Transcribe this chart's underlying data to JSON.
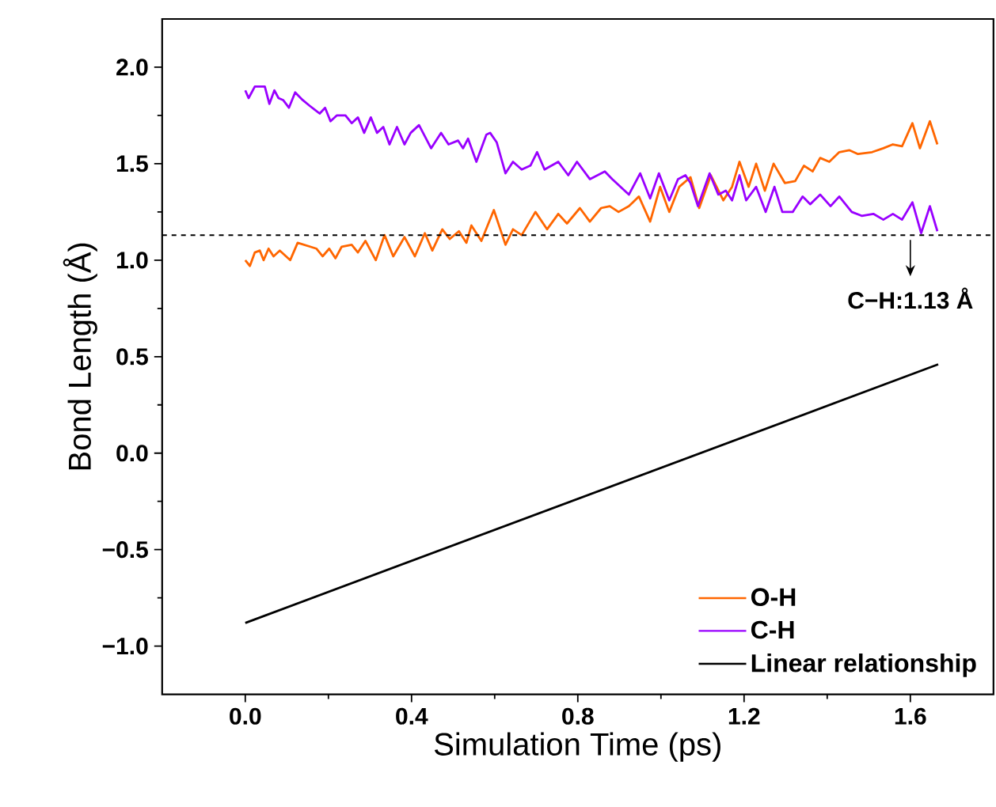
{
  "chart_data": {
    "type": "line",
    "xlabel": "Simulation Time (ps)",
    "ylabel": "Bond Length (Å)",
    "xlim": [
      -0.2,
      1.8
    ],
    "ylim": [
      -1.25,
      2.25
    ],
    "xticks": [
      {
        "value": 0,
        "label": "0.0"
      },
      0.4,
      0.8,
      1.2,
      1.6
    ],
    "yticks": [
      {
        "value": -1,
        "label": "−1.0"
      },
      {
        "value": -0.5,
        "label": "−0.5"
      },
      {
        "value": 0,
        "label": "0.0"
      },
      0.5,
      {
        "value": 1,
        "label": "1.0"
      },
      1.5,
      {
        "value": 2,
        "label": "2.0"
      }
    ],
    "legend": "bottom right",
    "grid": false,
    "marker": "none",
    "line_style": "solid",
    "ref_lines": [
      {
        "axis": "y",
        "value": 1.13,
        "line_style": "dashed",
        "color": "#000000"
      }
    ],
    "annotations": [
      {
        "text": "C−H:1.13 Å",
        "x": 1.6,
        "y": 1.13
      }
    ],
    "series": [
      {
        "name": "O-H",
        "color": "#ff6600",
        "x": [
          0,
          0.011,
          0.023,
          0.035,
          0.044,
          0.056,
          0.068,
          0.083,
          0.108,
          0.126,
          0.156,
          0.171,
          0.186,
          0.202,
          0.217,
          0.232,
          0.256,
          0.271,
          0.289,
          0.314,
          0.335,
          0.356,
          0.383,
          0.408,
          0.432,
          0.45,
          0.474,
          0.492,
          0.514,
          0.532,
          0.544,
          0.568,
          0.598,
          0.626,
          0.644,
          0.665,
          0.698,
          0.726,
          0.753,
          0.774,
          0.805,
          0.829,
          0.856,
          0.877,
          0.898,
          0.923,
          0.947,
          0.974,
          0.998,
          1.02,
          1.044,
          1.071,
          1.092,
          1.12,
          1.15,
          1.171,
          1.189,
          1.211,
          1.229,
          1.25,
          1.271,
          1.298,
          1.323,
          1.344,
          1.365,
          1.383,
          1.405,
          1.429,
          1.453,
          1.474,
          1.508,
          1.535,
          1.558,
          1.58,
          1.605,
          1.623,
          1.647,
          1.665
        ],
        "values": [
          1.0,
          0.97,
          1.04,
          1.05,
          1.0,
          1.06,
          1.02,
          1.05,
          1.0,
          1.09,
          1.07,
          1.06,
          1.02,
          1.06,
          1.01,
          1.07,
          1.08,
          1.04,
          1.1,
          1.0,
          1.13,
          1.02,
          1.12,
          1.02,
          1.14,
          1.05,
          1.16,
          1.11,
          1.15,
          1.09,
          1.18,
          1.1,
          1.26,
          1.08,
          1.16,
          1.13,
          1.25,
          1.16,
          1.24,
          1.19,
          1.27,
          1.2,
          1.27,
          1.28,
          1.25,
          1.28,
          1.33,
          1.2,
          1.38,
          1.25,
          1.38,
          1.43,
          1.27,
          1.44,
          1.31,
          1.38,
          1.51,
          1.38,
          1.5,
          1.36,
          1.5,
          1.4,
          1.41,
          1.49,
          1.46,
          1.53,
          1.51,
          1.56,
          1.57,
          1.55,
          1.56,
          1.58,
          1.6,
          1.59,
          1.71,
          1.58,
          1.72,
          1.6
        ]
      },
      {
        "name": "C-H",
        "color": "#9900ff",
        "x": [
          0,
          0.008,
          0.023,
          0.038,
          0.047,
          0.058,
          0.07,
          0.08,
          0.091,
          0.105,
          0.12,
          0.138,
          0.155,
          0.167,
          0.179,
          0.192,
          0.205,
          0.22,
          0.241,
          0.256,
          0.271,
          0.286,
          0.302,
          0.317,
          0.332,
          0.347,
          0.365,
          0.383,
          0.398,
          0.418,
          0.447,
          0.471,
          0.489,
          0.512,
          0.524,
          0.536,
          0.556,
          0.58,
          0.589,
          0.605,
          0.626,
          0.644,
          0.665,
          0.686,
          0.702,
          0.72,
          0.753,
          0.777,
          0.798,
          0.829,
          0.865,
          0.883,
          0.923,
          0.95,
          0.974,
          0.995,
          1.02,
          1.041,
          1.059,
          1.071,
          1.089,
          1.117,
          1.138,
          1.156,
          1.171,
          1.189,
          1.205,
          1.229,
          1.252,
          1.273,
          1.292,
          1.317,
          1.341,
          1.359,
          1.383,
          1.408,
          1.429,
          1.459,
          1.483,
          1.511,
          1.535,
          1.558,
          1.58,
          1.605,
          1.626,
          1.647,
          1.665
        ],
        "values": [
          1.88,
          1.84,
          1.9,
          1.9,
          1.9,
          1.81,
          1.88,
          1.84,
          1.83,
          1.79,
          1.87,
          1.83,
          1.8,
          1.78,
          1.76,
          1.79,
          1.72,
          1.75,
          1.75,
          1.71,
          1.74,
          1.66,
          1.74,
          1.66,
          1.69,
          1.6,
          1.69,
          1.6,
          1.66,
          1.7,
          1.58,
          1.66,
          1.6,
          1.62,
          1.58,
          1.63,
          1.51,
          1.65,
          1.66,
          1.61,
          1.45,
          1.51,
          1.47,
          1.49,
          1.56,
          1.47,
          1.51,
          1.44,
          1.51,
          1.42,
          1.46,
          1.42,
          1.34,
          1.45,
          1.32,
          1.45,
          1.31,
          1.42,
          1.44,
          1.4,
          1.28,
          1.45,
          1.34,
          1.36,
          1.31,
          1.44,
          1.31,
          1.38,
          1.25,
          1.38,
          1.25,
          1.25,
          1.33,
          1.29,
          1.34,
          1.28,
          1.33,
          1.25,
          1.23,
          1.24,
          1.21,
          1.24,
          1.21,
          1.3,
          1.14,
          1.28,
          1.15
        ]
      },
      {
        "name": "Linear relationship",
        "color": "#000000",
        "x": [
          0,
          1.667
        ],
        "values": [
          -0.88,
          0.46
        ]
      }
    ]
  }
}
